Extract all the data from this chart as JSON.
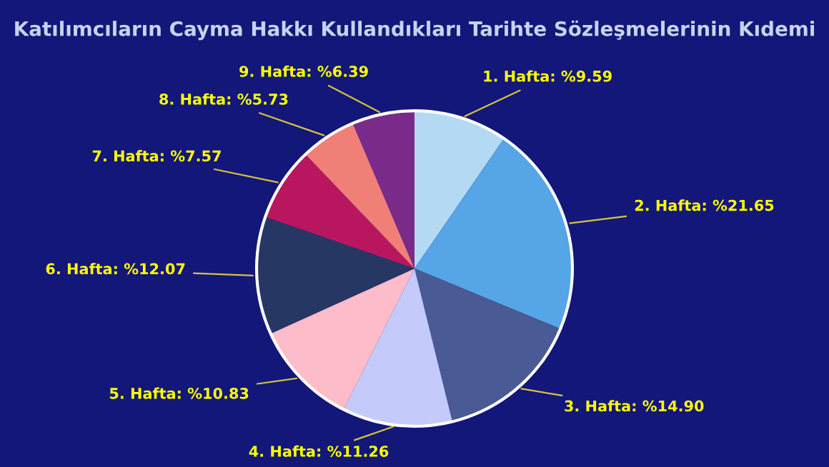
{
  "chart_data": {
    "type": "pie",
    "title": "Katılımcıların Cayma Hakkı Kullandıkları Tarihte Sözleşmelerinin Kıdemi",
    "categories": [
      "1. Hafta: %9.59",
      "2. Hafta: %21.65",
      "3. Hafta: %14.90",
      "4. Hafta: %11.26",
      "5. Hafta: %10.83",
      "6. Hafta: %12.07",
      "7. Hafta: %7.57",
      "8. Hafta: %5.73",
      "9. Hafta: %6.39"
    ],
    "values": [
      9.59,
      21.65,
      14.9,
      11.26,
      10.83,
      12.07,
      7.57,
      5.73,
      6.39
    ],
    "colors": [
      "#b4daf3",
      "#56a5e6",
      "#4a5a94",
      "#c4cbfb",
      "#fdbcc9",
      "#263763",
      "#b8175f",
      "#f07f78",
      "#7a2b8a"
    ]
  }
}
